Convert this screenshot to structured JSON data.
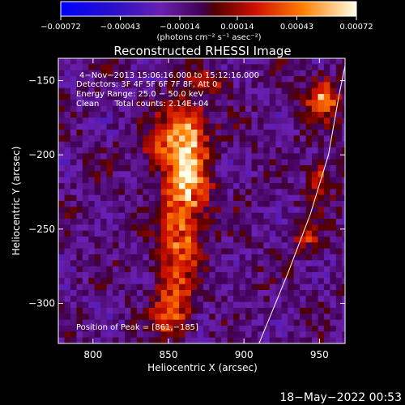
{
  "chart_data": {
    "type": "heatmap",
    "title": "Reconstructed RHESSI Image",
    "xlabel": "Heliocentric X (arcsec)",
    "ylabel": "Heliocentric Y (arcsec)",
    "xlim": [
      777,
      967
    ],
    "ylim": [
      -327,
      -135
    ],
    "x_ticks": [
      800,
      850,
      900,
      950
    ],
    "y_ticks": [
      -150,
      -200,
      -250,
      -300
    ],
    "x_tick_labels": [
      "800",
      "850",
      "900",
      "950"
    ],
    "y_tick_labels": [
      "−150",
      "−200",
      "−250",
      "−300"
    ],
    "colorbar": {
      "min": -0.00072,
      "max": 0.00072,
      "ticks": [
        -0.00072,
        -0.00043,
        -0.00014,
        0.00014,
        0.00043,
        0.00072
      ],
      "tick_labels": [
        "−0.00072",
        "−0.00043",
        "−0.00014",
        "0.00014",
        "0.00043",
        "0.00072"
      ],
      "unit_label": "(photons cm⁻² s⁻¹ asec⁻²)"
    },
    "annotations": [
      "4−Nov−2013 15:06:16.000 to 15:12:16.000",
      "Detectors: 3F 4F 5F 6F 7F 8F, Att 0",
      "Energy Range: 25.0 − 50.0 keV",
      "Clean      Total counts: 2.14E+04"
    ],
    "peak_label": "Position of Peak = [861,−185]",
    "peak": {
      "x": 861,
      "y": -185
    },
    "limb_line": [
      [
        910,
        -327
      ],
      [
        929,
        -280
      ],
      [
        944,
        -240
      ],
      [
        956,
        -200
      ],
      [
        963,
        -160
      ],
      [
        967,
        -140
      ]
    ],
    "sources": [
      {
        "x": 858,
        "y": -185,
        "sx": 10,
        "sy": 16,
        "amp": 0.0007
      },
      {
        "x": 860,
        "y": -220,
        "sx": 11,
        "sy": 16,
        "amp": 0.0006
      },
      {
        "x": 856,
        "y": -255,
        "sx": 10,
        "sy": 14,
        "amp": 0.00045
      },
      {
        "x": 852,
        "y": -290,
        "sx": 9,
        "sy": 14,
        "amp": 0.0004
      },
      {
        "x": 850,
        "y": -310,
        "sx": 8,
        "sy": 10,
        "amp": 0.0003
      },
      {
        "x": 950,
        "y": -160,
        "sx": 8,
        "sy": 10,
        "amp": 0.0005
      },
      {
        "x": 948,
        "y": -215,
        "sx": 6,
        "sy": 10,
        "amp": 0.00035
      },
      {
        "x": 940,
        "y": -255,
        "sx": 6,
        "sy": 8,
        "amp": 0.0003
      },
      {
        "x": 875,
        "y": -150,
        "sx": 8,
        "sy": 6,
        "amp": 0.0003
      },
      {
        "x": 838,
        "y": -195,
        "sx": 6,
        "sy": 8,
        "amp": 0.00025
      }
    ]
  },
  "footer_date": "18−May−2022 00:53"
}
